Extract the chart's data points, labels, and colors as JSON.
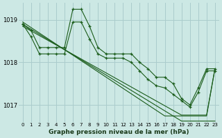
{
  "background_color": "#cce8e4",
  "grid_color": "#aacccc",
  "line_color": "#1a5c1a",
  "marker_color": "#1a5c1a",
  "title": "Graphe pression niveau de la mer (hPa)",
  "xlabel_hours": [
    0,
    1,
    2,
    3,
    4,
    5,
    6,
    7,
    8,
    9,
    10,
    11,
    12,
    13,
    14,
    15,
    16,
    17,
    18,
    19,
    20,
    21,
    22,
    23
  ],
  "ylim": [
    1016.6,
    1019.4
  ],
  "yticks": [
    1017,
    1018,
    1019
  ],
  "jagged_series": [
    [
      1018.9,
      1018.75,
      1018.35,
      1018.35,
      1018.35,
      1018.35,
      1019.25,
      1019.25,
      1018.85,
      1018.35,
      1018.2,
      1018.2,
      1018.2,
      1018.2,
      1018.0,
      1017.85,
      1017.65,
      1017.65,
      1017.5,
      1017.15,
      1017.0,
      1017.4,
      1017.85,
      1017.85
    ],
    [
      1018.9,
      1018.6,
      1018.2,
      1018.2,
      1018.2,
      1018.2,
      1018.95,
      1018.95,
      1018.55,
      1018.2,
      1018.1,
      1018.1,
      1018.1,
      1018.0,
      1017.8,
      1017.6,
      1017.45,
      1017.4,
      1017.25,
      1017.1,
      1016.95,
      1017.3,
      1017.8,
      1017.8
    ]
  ],
  "straight_series": [
    [
      1018.9,
      1018.78,
      1018.66,
      1018.54,
      1018.42,
      1018.3,
      1018.18,
      1018.06,
      1017.94,
      1017.82,
      1017.7,
      1017.58,
      1017.46,
      1017.34,
      1017.22,
      1017.1,
      1016.98,
      1016.86,
      1016.74,
      1016.62,
      1016.62,
      1016.62,
      1016.62,
      1016.62
    ],
    [
      1018.85,
      1018.74,
      1018.63,
      1018.52,
      1018.41,
      1018.3,
      1018.19,
      1018.08,
      1017.97,
      1017.86,
      1017.75,
      1017.64,
      1017.53,
      1017.42,
      1017.31,
      1017.2,
      1017.09,
      1016.98,
      1016.87,
      1016.76,
      1016.76,
      1016.76,
      1016.76,
      1017.85
    ],
    [
      1018.95,
      1018.82,
      1018.69,
      1018.56,
      1018.43,
      1018.3,
      1018.17,
      1018.04,
      1017.91,
      1017.78,
      1017.65,
      1017.52,
      1017.39,
      1017.26,
      1017.13,
      1017.0,
      1016.87,
      1016.74,
      1016.74,
      1016.74,
      1016.74,
      1016.74,
      1016.74,
      1017.85
    ]
  ]
}
